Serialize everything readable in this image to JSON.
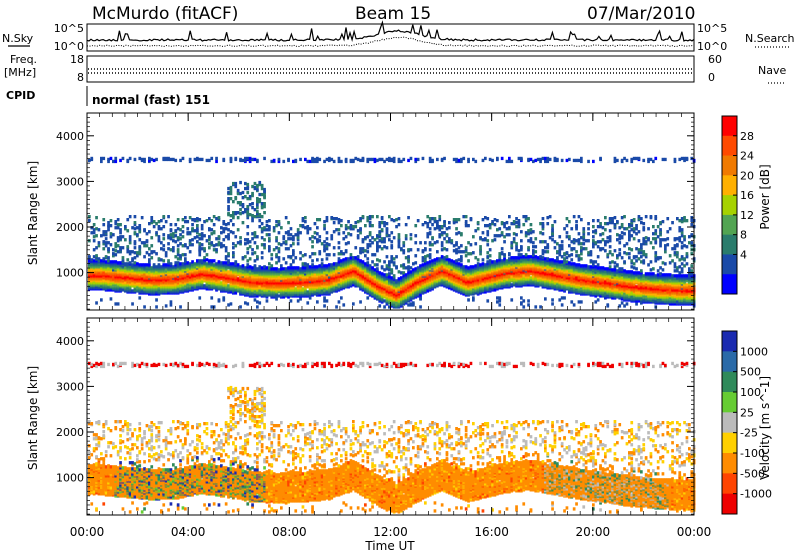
{
  "header": {
    "station": "McMurdo (fitACF)",
    "beam": "Beam 15",
    "date": "07/Mar/2010"
  },
  "summary": {
    "nsky_label": "N.Sky",
    "nsearch_label": "N.Search",
    "freq_label_1": "Freq.",
    "freq_label_2": "[MHz]",
    "nave_label": "Nave",
    "cpid_label": "CPID",
    "cpid_value": "normal (fast) 151",
    "nsky_ticks": [
      "10^5",
      "10^0"
    ],
    "freq_ticks": [
      "18",
      "8"
    ],
    "nave_ticks": [
      "60",
      "0"
    ]
  },
  "power_colorbar": {
    "label": "Power [dB]",
    "ticks": [
      "28",
      "24",
      "20",
      "16",
      "12",
      "8",
      "4"
    ],
    "colors": [
      "#ff0000",
      "#ff4a00",
      "#f07a00",
      "#ffb000",
      "#a6d200",
      "#52a452",
      "#2a7c6c",
      "#1a4aa8",
      "#0000ff"
    ]
  },
  "velocity_colorbar": {
    "label": "Velocity [m s^-1]",
    "ticks": [
      "1000",
      "500",
      "100",
      "25",
      "-25",
      "-100",
      "-500",
      "-1000"
    ],
    "colors": [
      "#1a2ab0",
      "#2a6aa8",
      "#2f8a5a",
      "#66cc33",
      "#bbbbbb",
      "#ffd000",
      "#ff8c00",
      "#ff4400",
      "#ee0000"
    ]
  },
  "chart_data": [
    {
      "type": "heatmap",
      "name": "power",
      "ylabel": "Slant Range [km]",
      "xlabel": "",
      "ylim": [
        180,
        4500
      ],
      "y_ticks": [
        1000,
        2000,
        3000,
        4000
      ],
      "x_ticks": [
        "00:00",
        "04:00",
        "08:00",
        "12:00",
        "16:00",
        "20:00",
        "00:00"
      ],
      "x_tick_hours": [
        0,
        4,
        8,
        12,
        16,
        20,
        24
      ],
      "xlim": [
        0,
        24
      ],
      "main_band_center_km": [
        [
          0.5,
          950
        ],
        [
          1.5,
          900
        ],
        [
          2.5,
          850
        ],
        [
          3.5,
          870
        ],
        [
          4.5,
          980
        ],
        [
          5.5,
          900
        ],
        [
          6.5,
          800
        ],
        [
          7.5,
          780
        ],
        [
          8.5,
          800
        ],
        [
          9.5,
          850
        ],
        [
          10.5,
          1050
        ],
        [
          11.5,
          700
        ],
        [
          12.2,
          520
        ],
        [
          13.0,
          800
        ],
        [
          14.0,
          1050
        ],
        [
          15.0,
          800
        ],
        [
          16.5,
          1000
        ],
        [
          17.5,
          1050
        ],
        [
          18.5,
          950
        ],
        [
          19.5,
          850
        ],
        [
          20.5,
          780
        ],
        [
          21.5,
          700
        ],
        [
          22.5,
          650
        ],
        [
          23.5,
          620
        ]
      ],
      "peak_power_db": 30
    },
    {
      "type": "heatmap",
      "name": "velocity",
      "ylabel": "Slant Range [km]",
      "xlabel": "Time UT",
      "ylim": [
        180,
        4500
      ],
      "y_ticks": [
        1000,
        2000,
        3000,
        4000
      ],
      "x_ticks": [
        "00:00",
        "04:00",
        "08:00",
        "12:00",
        "16:00",
        "20:00",
        "00:00"
      ],
      "x_tick_hours": [
        0,
        4,
        8,
        12,
        16,
        20,
        24
      ],
      "xlim": [
        0,
        24
      ],
      "dominant_velocity_ms": -100
    }
  ]
}
